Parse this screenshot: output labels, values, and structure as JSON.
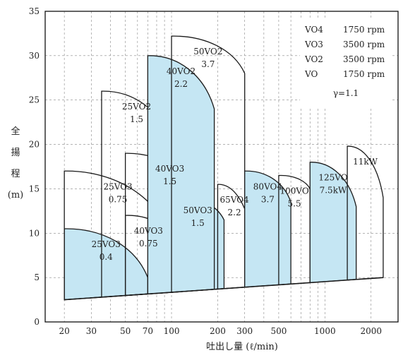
{
  "chart_data": {
    "type": "area",
    "xlabel": "吐出し量 (ℓ/min)",
    "ylabel": "全揚程(m)",
    "xscale": "log",
    "xlim": [
      15,
      3000
    ],
    "ylim": [
      0,
      35
    ],
    "x_ticks": [
      20,
      30,
      50,
      70,
      100,
      200,
      300,
      500,
      1000,
      2000
    ],
    "y_ticks": [
      0,
      5,
      10,
      15,
      20,
      25,
      30,
      35
    ],
    "grid": true,
    "legend": {
      "placement": "top-right",
      "entries": [
        {
          "model": "VO4",
          "speed": "1750 rpm"
        },
        {
          "model": "VO3",
          "speed": "3500 rpm"
        },
        {
          "model": "VO2",
          "speed": "3500 rpm"
        },
        {
          "model": "VO",
          "speed": "1750 rpm"
        }
      ],
      "gamma": "γ=1.1"
    },
    "baseline": {
      "x": [
        20,
        2400
      ],
      "y": [
        2.5,
        5
      ]
    },
    "regions": [
      {
        "name": "25VO3",
        "power": "0.4",
        "filled": true,
        "x_min": 20,
        "x_max": 70,
        "top_left": 10.5,
        "top_right": 5
      },
      {
        "name": "40VO3",
        "power": "0.75",
        "filled": false,
        "x_min": 50,
        "x_max": 100,
        "top_left": 12,
        "top_right": 9.5
      },
      {
        "name": "25VO3",
        "power": "0.75",
        "filled": false,
        "x_min": 20,
        "x_max": 100,
        "top_left": 17,
        "top_right": 9.5
      },
      {
        "name": "40VO3",
        "power": "1.5",
        "filled": false,
        "x_min": 50,
        "x_max": 190,
        "top_left": 19,
        "top_right": 11.5
      },
      {
        "name": "50VO3",
        "power": "1.5",
        "filled": true,
        "x_min": 100,
        "x_max": 220,
        "top_left": 14.3,
        "top_right": 11.5
      },
      {
        "name": "25VO2",
        "power": "1.5",
        "filled": false,
        "x_min": 35,
        "x_max": 100,
        "top_left": 26,
        "top_right": 20
      },
      {
        "name": "40VO2",
        "power": "2.2",
        "filled": true,
        "x_min": 70,
        "x_max": 190,
        "top_left": 30,
        "top_right": 24
      },
      {
        "name": "50VO2",
        "power": "3.7",
        "filled": false,
        "x_min": 100,
        "x_max": 300,
        "top_left": 32.2,
        "top_right": 28
      },
      {
        "name": "65VO4",
        "power": "2.2",
        "filled": false,
        "x_min": 200,
        "x_max": 330,
        "top_left": 15.5,
        "top_right": 10
      },
      {
        "name": "80VO4",
        "power": "3.7",
        "filled": true,
        "x_min": 300,
        "x_max": 600,
        "top_left": 17,
        "top_right": 13.5
      },
      {
        "name": "100VO",
        "power": "5.5",
        "filled": false,
        "x_min": 500,
        "x_max": 800,
        "top_left": 16.5,
        "top_right": 15
      },
      {
        "name": "125VO",
        "power": "7.5kW",
        "filled": true,
        "x_min": 800,
        "x_max": 1600,
        "top_left": 18,
        "top_right": 13
      },
      {
        "name": "",
        "power": "11kW",
        "filled": false,
        "x_min": 1400,
        "x_max": 2400,
        "top_left": 19.8,
        "top_right": 14
      }
    ],
    "fill_color": "#c5e6f3",
    "line_color": "#1a1a1a"
  }
}
